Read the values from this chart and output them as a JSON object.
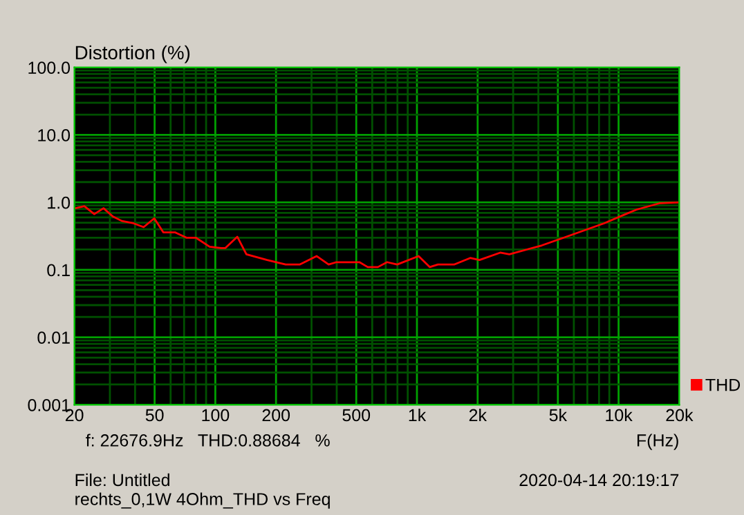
{
  "chart_data": {
    "type": "line",
    "ylabel": "Distortion (%)",
    "xlabel": "F(Hz)",
    "log": "xy",
    "grid": true,
    "legend": "right",
    "line_style": "solid",
    "marker": "none",
    "xlim": [
      20,
      20000
    ],
    "xticks": [
      20,
      {
        "value": 30,
        "label": null
      },
      {
        "value": 40,
        "label": null
      },
      50,
      {
        "value": 60,
        "label": null
      },
      {
        "value": 70,
        "label": null
      },
      {
        "value": 80,
        "label": null
      },
      {
        "value": 90,
        "label": null
      },
      100,
      200,
      {
        "value": 300,
        "label": null
      },
      {
        "value": 400,
        "label": null
      },
      500,
      {
        "value": 600,
        "label": null
      },
      {
        "value": 700,
        "label": null
      },
      {
        "value": 800,
        "label": null
      },
      {
        "value": 900,
        "label": null
      },
      {
        "value": 1000,
        "label": "1k"
      },
      {
        "value": 2000,
        "label": "2k"
      },
      {
        "value": 3000,
        "label": null
      },
      {
        "value": 4000,
        "label": null
      },
      {
        "value": 5000,
        "label": "5k"
      },
      {
        "value": 6000,
        "label": null
      },
      {
        "value": 7000,
        "label": null
      },
      {
        "value": 8000,
        "label": null
      },
      {
        "value": 9000,
        "label": null
      },
      {
        "value": 10000,
        "label": "10k"
      },
      {
        "value": 20000,
        "label": "20k"
      }
    ],
    "ylim": [
      0.001,
      100
    ],
    "yticks": [
      0.001,
      {
        "value": 0.002,
        "label": null
      },
      {
        "value": 0.003,
        "label": null
      },
      {
        "value": 0.004,
        "label": null
      },
      {
        "value": 0.005,
        "label": null
      },
      {
        "value": 0.006,
        "label": null
      },
      {
        "value": 0.007,
        "label": null
      },
      {
        "value": 0.008,
        "label": null
      },
      {
        "value": 0.009,
        "label": null
      },
      0.01,
      {
        "value": 0.02,
        "label": null
      },
      {
        "value": 0.03,
        "label": null
      },
      {
        "value": 0.04,
        "label": null
      },
      {
        "value": 0.05,
        "label": null
      },
      {
        "value": 0.06,
        "label": null
      },
      {
        "value": 0.07,
        "label": null
      },
      {
        "value": 0.08,
        "label": null
      },
      {
        "value": 0.09,
        "label": null
      },
      0.1,
      {
        "value": 0.2,
        "label": null
      },
      {
        "value": 0.3,
        "label": null
      },
      {
        "value": 0.4,
        "label": null
      },
      {
        "value": 0.5,
        "label": null
      },
      {
        "value": 0.6,
        "label": null
      },
      {
        "value": 0.7,
        "label": null
      },
      {
        "value": 0.8,
        "label": null
      },
      {
        "value": 0.9,
        "label": null
      },
      {
        "value": 1,
        "label": "1.0"
      },
      {
        "value": 2,
        "label": null
      },
      {
        "value": 3,
        "label": null
      },
      {
        "value": 4,
        "label": null
      },
      {
        "value": 5,
        "label": null
      },
      {
        "value": 6,
        "label": null
      },
      {
        "value": 7,
        "label": null
      },
      {
        "value": 8,
        "label": null
      },
      {
        "value": 9,
        "label": null
      },
      {
        "value": 10,
        "label": "10.0"
      },
      {
        "value": 20,
        "label": null
      },
      {
        "value": 30,
        "label": null
      },
      {
        "value": 40,
        "label": null
      },
      {
        "value": 50,
        "label": null
      },
      {
        "value": 60,
        "label": null
      },
      {
        "value": 70,
        "label": null
      },
      {
        "value": 80,
        "label": null
      },
      {
        "value": 90,
        "label": null
      },
      {
        "value": 100,
        "label": "100.0"
      }
    ],
    "annotations": [
      "f: 22676.9Hz   THD:0.88684   %",
      "File: Untitled",
      "2020-04-14 20:19:17",
      "rechts_0,1W 4Ohm_THD vs Freq"
    ],
    "series": [
      {
        "name": "THD",
        "color": "#ff0000",
        "x": [
          20.3,
          22.4,
          25.1,
          27.9,
          31.0,
          34.4,
          39.3,
          44.1,
          49.8,
          55.2,
          63.1,
          71.9,
          80.0,
          93.7,
          106.8,
          111.9,
          128.5,
          142.6,
          180.7,
          223.3,
          261.8,
          317.8,
          364.8,
          398.4,
          518.6,
          570,
          639.7,
          711,
          797.8,
          1019,
          1157,
          1271,
          1527,
          1837,
          2042,
          2588,
          2872,
          4158,
          5847,
          8470,
          10450,
          12240,
          15930,
          20000
        ],
        "values": [
          0.82,
          0.88,
          0.67,
          0.82,
          0.62,
          0.53,
          0.49,
          0.43,
          0.58,
          0.36,
          0.36,
          0.3,
          0.3,
          0.22,
          0.21,
          0.21,
          0.31,
          0.17,
          0.14,
          0.12,
          0.12,
          0.16,
          0.12,
          0.13,
          0.13,
          0.11,
          0.11,
          0.13,
          0.12,
          0.16,
          0.11,
          0.12,
          0.12,
          0.15,
          0.14,
          0.18,
          0.17,
          0.23,
          0.33,
          0.49,
          0.64,
          0.78,
          0.97,
          1.0
        ]
      }
    ]
  }
}
